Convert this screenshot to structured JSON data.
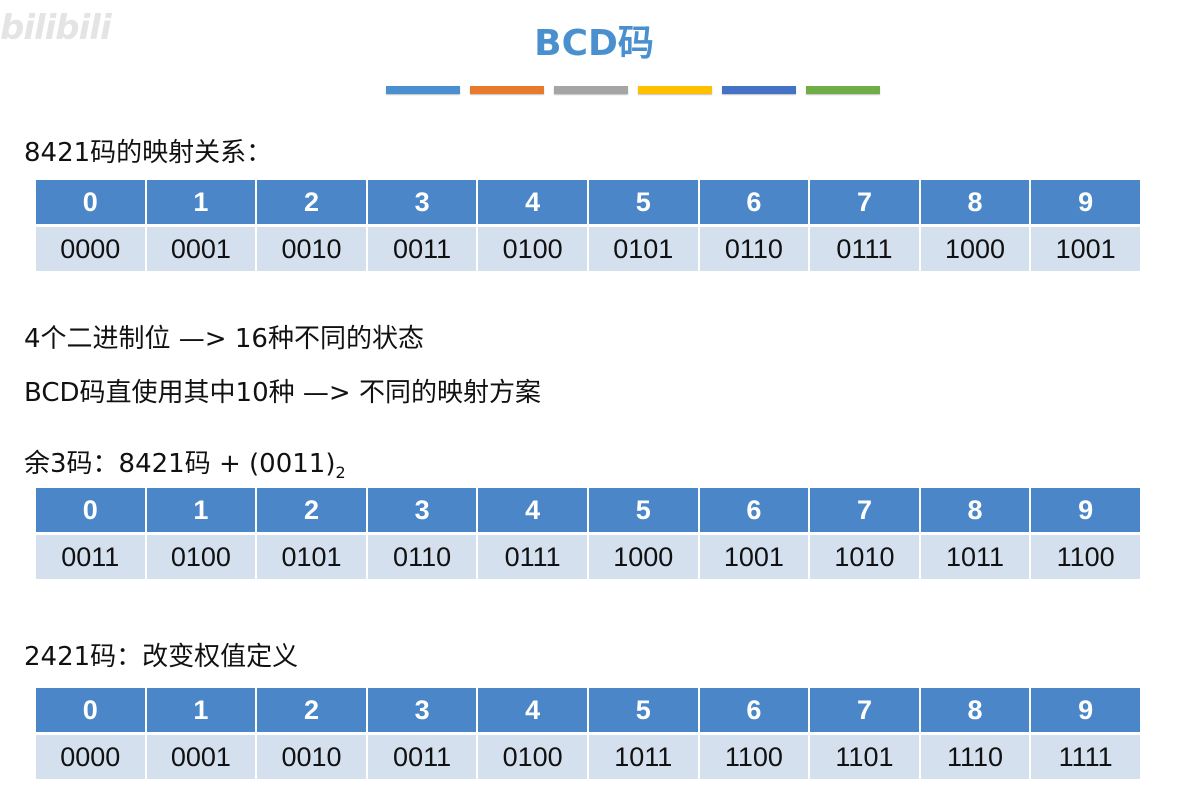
{
  "watermark": "bilibili",
  "title": "BCD码",
  "color_bar": [
    "#4a8fd0",
    "#e97a2c",
    "#a5a5a5",
    "#ffc000",
    "#4472c4",
    "#70ad47"
  ],
  "sections": {
    "s8421": {
      "label": "8421码的映射关系：",
      "digits": [
        "0",
        "1",
        "2",
        "3",
        "4",
        "5",
        "6",
        "7",
        "8",
        "9"
      ],
      "codes": [
        "0000",
        "0001",
        "0010",
        "0011",
        "0100",
        "0101",
        "0110",
        "0111",
        "1000",
        "1001"
      ]
    },
    "note1": "4个二进制位  —> 16种不同的状态",
    "note2": "BCD码直使用其中10种  —> 不同的映射方案",
    "excess3": {
      "label": "余3码：8421码 + (0011)",
      "label_sub": "2",
      "digits": [
        "0",
        "1",
        "2",
        "3",
        "4",
        "5",
        "6",
        "7",
        "8",
        "9"
      ],
      "codes": [
        "0011",
        "0100",
        "0101",
        "0110",
        "0111",
        "1000",
        "1001",
        "1010",
        "1011",
        "1100"
      ]
    },
    "s2421": {
      "label": "2421码：改变权值定义",
      "digits": [
        "0",
        "1",
        "2",
        "3",
        "4",
        "5",
        "6",
        "7",
        "8",
        "9"
      ],
      "codes": [
        "0000",
        "0001",
        "0010",
        "0011",
        "0100",
        "1011",
        "1100",
        "1101",
        "1110",
        "1111"
      ]
    }
  }
}
